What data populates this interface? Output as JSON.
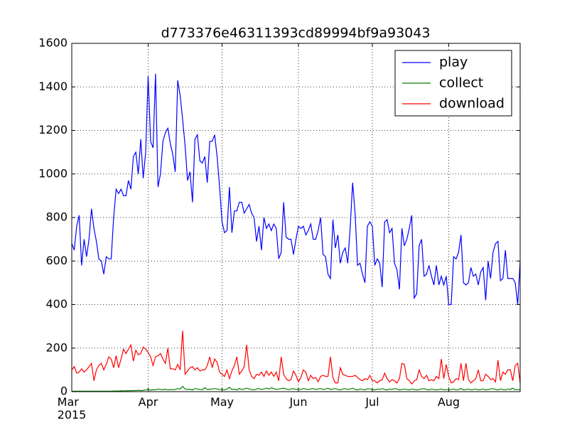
{
  "chart_data": {
    "type": "line",
    "title": "d773376e46311393cd89994bf9a93043",
    "x": [
      "2015-03-01",
      "2015-03-02",
      "2015-03-03",
      "2015-03-04",
      "2015-03-05",
      "2015-03-06",
      "2015-03-07",
      "2015-03-08",
      "2015-03-09",
      "2015-03-10",
      "2015-03-11",
      "2015-03-12",
      "2015-03-13",
      "2015-03-14",
      "2015-03-15",
      "2015-03-16",
      "2015-03-17",
      "2015-03-18",
      "2015-03-19",
      "2015-03-20",
      "2015-03-21",
      "2015-03-22",
      "2015-03-23",
      "2015-03-24",
      "2015-03-25",
      "2015-03-26",
      "2015-03-27",
      "2015-03-28",
      "2015-03-29",
      "2015-03-30",
      "2015-03-31",
      "2015-04-01",
      "2015-04-02",
      "2015-04-03",
      "2015-04-04",
      "2015-04-05",
      "2015-04-06",
      "2015-04-07",
      "2015-04-08",
      "2015-04-09",
      "2015-04-10",
      "2015-04-11",
      "2015-04-12",
      "2015-04-13",
      "2015-04-14",
      "2015-04-15",
      "2015-04-16",
      "2015-04-17",
      "2015-04-18",
      "2015-04-19",
      "2015-04-20",
      "2015-04-21",
      "2015-04-22",
      "2015-04-23",
      "2015-04-24",
      "2015-04-25",
      "2015-04-26",
      "2015-04-27",
      "2015-04-28",
      "2015-04-29",
      "2015-04-30",
      "2015-05-01",
      "2015-05-02",
      "2015-05-03",
      "2015-05-04",
      "2015-05-05",
      "2015-05-06",
      "2015-05-07",
      "2015-05-08",
      "2015-05-09",
      "2015-05-10",
      "2015-05-11",
      "2015-05-12",
      "2015-05-13",
      "2015-05-14",
      "2015-05-15",
      "2015-05-16",
      "2015-05-17",
      "2015-05-18",
      "2015-05-19",
      "2015-05-20",
      "2015-05-21",
      "2015-05-22",
      "2015-05-23",
      "2015-05-24",
      "2015-05-25",
      "2015-05-26",
      "2015-05-27",
      "2015-05-28",
      "2015-05-29",
      "2015-05-30",
      "2015-05-31",
      "2015-06-01",
      "2015-06-02",
      "2015-06-03",
      "2015-06-04",
      "2015-06-05",
      "2015-06-06",
      "2015-06-07",
      "2015-06-08",
      "2015-06-09",
      "2015-06-10",
      "2015-06-11",
      "2015-06-12",
      "2015-06-13",
      "2015-06-14",
      "2015-06-15",
      "2015-06-16",
      "2015-06-17",
      "2015-06-18",
      "2015-06-19",
      "2015-06-20",
      "2015-06-21",
      "2015-06-22",
      "2015-06-23",
      "2015-06-24",
      "2015-06-25",
      "2015-06-26",
      "2015-06-27",
      "2015-06-28",
      "2015-06-29",
      "2015-06-30",
      "2015-07-01",
      "2015-07-02",
      "2015-07-03",
      "2015-07-04",
      "2015-07-05",
      "2015-07-06",
      "2015-07-07",
      "2015-07-08",
      "2015-07-09",
      "2015-07-10",
      "2015-07-11",
      "2015-07-12",
      "2015-07-13",
      "2015-07-14",
      "2015-07-15",
      "2015-07-16",
      "2015-07-17",
      "2015-07-18",
      "2015-07-19",
      "2015-07-20",
      "2015-07-21",
      "2015-07-22",
      "2015-07-23",
      "2015-07-24",
      "2015-07-25",
      "2015-07-26",
      "2015-07-27",
      "2015-07-28",
      "2015-07-29",
      "2015-07-30",
      "2015-07-31",
      "2015-08-01",
      "2015-08-02",
      "2015-08-03",
      "2015-08-04",
      "2015-08-05",
      "2015-08-06",
      "2015-08-07",
      "2015-08-08",
      "2015-08-09",
      "2015-08-10",
      "2015-08-11",
      "2015-08-12",
      "2015-08-13",
      "2015-08-14",
      "2015-08-15",
      "2015-08-16",
      "2015-08-17",
      "2015-08-18",
      "2015-08-19",
      "2015-08-20",
      "2015-08-21",
      "2015-08-22",
      "2015-08-23",
      "2015-08-24",
      "2015-08-25",
      "2015-08-26",
      "2015-08-27",
      "2015-08-28",
      "2015-08-29",
      "2015-08-30"
    ],
    "series": [
      {
        "name": "play",
        "color": "#0000ff",
        "values": [
          680,
          650,
          760,
          810,
          580,
          700,
          620,
          700,
          840,
          750,
          690,
          610,
          600,
          540,
          620,
          610,
          610,
          800,
          930,
          910,
          930,
          900,
          900,
          970,
          930,
          1080,
          1100,
          1000,
          1160,
          980,
          1100,
          1450,
          1150,
          1120,
          1460,
          940,
          1000,
          1150,
          1190,
          1210,
          1140,
          1090,
          1010,
          1430,
          1360,
          1250,
          1130,
          970,
          1010,
          870,
          1160,
          1180,
          1060,
          1050,
          1080,
          960,
          1150,
          1150,
          1180,
          1080,
          940,
          780,
          730,
          740,
          940,
          730,
          830,
          830,
          870,
          870,
          820,
          840,
          860,
          820,
          800,
          690,
          760,
          650,
          800,
          750,
          770,
          740,
          770,
          750,
          610,
          640,
          870,
          710,
          700,
          700,
          630,
          700,
          760,
          750,
          760,
          720,
          740,
          770,
          700,
          700,
          740,
          800,
          630,
          620,
          540,
          520,
          790,
          660,
          720,
          590,
          640,
          660,
          590,
          750,
          960,
          820,
          580,
          590,
          540,
          500,
          760,
          780,
          760,
          580,
          610,
          590,
          480,
          780,
          790,
          730,
          750,
          590,
          560,
          470,
          750,
          670,
          700,
          750,
          810,
          430,
          450,
          670,
          700,
          530,
          540,
          580,
          530,
          490,
          580,
          490,
          530,
          490,
          530,
          400,
          400,
          620,
          610,
          640,
          720,
          500,
          490,
          500,
          570,
          530,
          540,
          490,
          550,
          570,
          420,
          600,
          520,
          640,
          680,
          690,
          510,
          520,
          650,
          520,
          520,
          520,
          500,
          400,
          600
        ]
      },
      {
        "name": "collect",
        "color": "#008000",
        "values": [
          2,
          2,
          2,
          2,
          2,
          2,
          2,
          2,
          2,
          2,
          2,
          2,
          2,
          2,
          2,
          2,
          2,
          3,
          3,
          3,
          4,
          3,
          4,
          4,
          5,
          5,
          5,
          6,
          5,
          6,
          8,
          10,
          7,
          9,
          8,
          12,
          10,
          9,
          11,
          8,
          10,
          9,
          10,
          14,
          12,
          24,
          12,
          10,
          11,
          8,
          14,
          12,
          10,
          9,
          18,
          10,
          11,
          12,
          14,
          12,
          10,
          10,
          8,
          12,
          20,
          10,
          12,
          8,
          14,
          10,
          12,
          16,
          12,
          10,
          8,
          12,
          14,
          10,
          12,
          16,
          12,
          18,
          14,
          10,
          12,
          14,
          16,
          12,
          10,
          12,
          14,
          10,
          12,
          10,
          14,
          12,
          10,
          12,
          14,
          10,
          12,
          14,
          10,
          12,
          16,
          10,
          12,
          14,
          10,
          8,
          12,
          14,
          10,
          12,
          16,
          10,
          8,
          12,
          10,
          8,
          14,
          12,
          10,
          8,
          12,
          10,
          14,
          10,
          8,
          12,
          10,
          14,
          12,
          8,
          10,
          12,
          10,
          8,
          12,
          10,
          8,
          10,
          12,
          14,
          10,
          8,
          12,
          10,
          8,
          10,
          12,
          8,
          10,
          8,
          10,
          12,
          8,
          10,
          14,
          8,
          10,
          12,
          8,
          10,
          12,
          8,
          10,
          12,
          8,
          10,
          12,
          14,
          10,
          8,
          12,
          10,
          8,
          12,
          10,
          16,
          8,
          10,
          8
        ]
      },
      {
        "name": "download",
        "color": "#ff0000",
        "values": [
          100,
          115,
          85,
          90,
          105,
          90,
          100,
          115,
          130,
          50,
          100,
          120,
          130,
          100,
          125,
          160,
          150,
          110,
          165,
          110,
          150,
          195,
          175,
          195,
          215,
          140,
          190,
          170,
          175,
          205,
          195,
          180,
          160,
          120,
          160,
          165,
          175,
          150,
          130,
          200,
          105,
          105,
          100,
          125,
          100,
          280,
          80,
          95,
          110,
          115,
          100,
          110,
          95,
          100,
          100,
          120,
          160,
          110,
          150,
          135,
          90,
          80,
          70,
          100,
          60,
          95,
          120,
          160,
          80,
          95,
          115,
          215,
          100,
          70,
          60,
          80,
          75,
          90,
          70,
          95,
          75,
          90,
          70,
          90,
          50,
          160,
          80,
          60,
          50,
          55,
          95,
          75,
          45,
          65,
          100,
          90,
          50,
          75,
          60,
          65,
          45,
          70,
          75,
          70,
          70,
          160,
          65,
          40,
          40,
          110,
          80,
          75,
          70,
          70,
          70,
          75,
          65,
          55,
          50,
          60,
          55,
          75,
          50,
          50,
          40,
          50,
          55,
          85,
          60,
          45,
          55,
          50,
          40,
          60,
          130,
          125,
          60,
          50,
          35,
          50,
          55,
          100,
          70,
          60,
          75,
          50,
          55,
          50,
          70,
          60,
          150,
          60,
          125,
          70,
          40,
          45,
          60,
          55,
          130,
          50,
          130,
          55,
          40,
          50,
          60,
          100,
          50,
          50,
          80,
          70,
          55,
          60,
          45,
          145,
          50,
          90,
          80,
          100,
          100,
          50,
          120,
          130,
          40
        ]
      }
    ],
    "xlim": [
      "2015-03-01",
      "2015-08-30"
    ],
    "xticks": [
      {
        "value": "2015-03-01",
        "label": "Mar\n2015"
      },
      {
        "value": "2015-04-01",
        "label": "Apr"
      },
      {
        "value": "2015-05-01",
        "label": "May"
      },
      {
        "value": "2015-06-01",
        "label": "Jun"
      },
      {
        "value": "2015-07-01",
        "label": "Jul"
      },
      {
        "value": "2015-08-01",
        "label": "Aug"
      }
    ],
    "ylim": [
      0,
      1600
    ],
    "yticks": [
      0,
      200,
      400,
      600,
      800,
      1000,
      1200,
      1400,
      1600
    ],
    "grid": true,
    "legend": "upper right"
  }
}
